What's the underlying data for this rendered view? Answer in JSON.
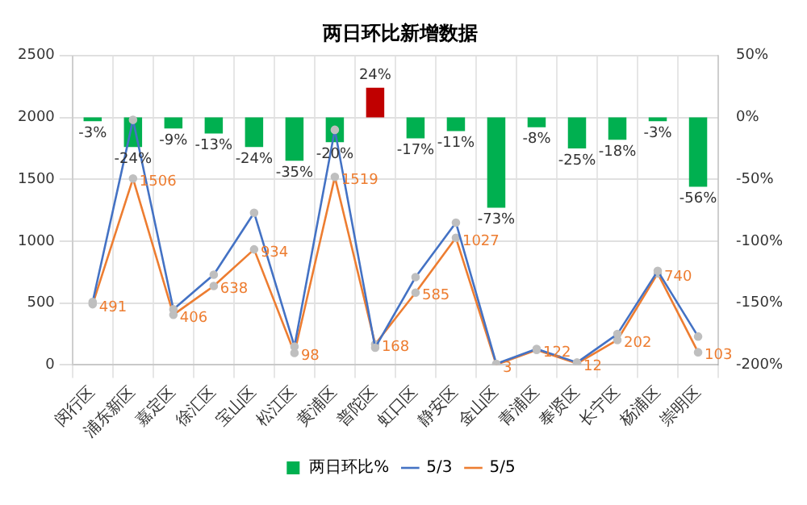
{
  "chart_data": {
    "type": "bar",
    "title": "两日环比新增数据",
    "categories": [
      "闵行区",
      "浦东新区",
      "嘉定区",
      "徐汇区",
      "宝山区",
      "松江区",
      "黄浦区",
      "普陀区",
      "虹口区",
      "静安区",
      "金山区",
      "青浦区",
      "奉贤区",
      "长宁区",
      "杨浦区",
      "崇明区"
    ],
    "series": [
      {
        "name": "两日环比%",
        "axis": "y2",
        "color": "#00b050",
        "colors": [
          "#00b050",
          "#00b050",
          "#00b050",
          "#00b050",
          "#00b050",
          "#00b050",
          "#00b050",
          "#c00000",
          "#00b050",
          "#00b050",
          "#00b050",
          "#00b050",
          "#00b050",
          "#00b050",
          "#00b050",
          "#00b050"
        ],
        "values": [
          -3,
          -24,
          -9,
          -13,
          -24,
          -35,
          -20,
          24,
          -17,
          -11,
          -73,
          -8,
          -25,
          -18,
          -3,
          -56
        ],
        "value_labels": [
          "-3%",
          "-24%",
          "-9%",
          "-13%",
          "-24%",
          "-35%",
          "-20%",
          "24%",
          "-17%",
          "-11%",
          "-73%",
          "-8%",
          "-25%",
          "-18%",
          "-3%",
          "-56%"
        ]
      },
      {
        "name": "5/3",
        "type": "line",
        "color": "#4472c4",
        "values": [
          510,
          1980,
          450,
          730,
          1230,
          150,
          1900,
          140,
          710,
          1150,
          10,
          130,
          20,
          250,
          760,
          230
        ]
      },
      {
        "name": "5/5",
        "type": "line",
        "color": "#ed7d31",
        "values": [
          491,
          1506,
          406,
          638,
          934,
          98,
          1519,
          168,
          585,
          1027,
          3,
          122,
          12,
          202,
          740,
          103
        ],
        "value_labels": [
          "491",
          "1506",
          "406",
          "638",
          "934",
          "98",
          "1519",
          "168",
          "585",
          "1027",
          "3",
          "122",
          "12",
          "202",
          "740",
          "103"
        ]
      }
    ],
    "ylim": [
      0,
      2500
    ],
    "yticks": [
      0,
      500,
      1000,
      1500,
      2000,
      2500
    ],
    "y2lim": [
      -200,
      50
    ],
    "y2ticks": [
      {
        "value": -200,
        "label": "-200%"
      },
      {
        "value": -150,
        "label": "-150%"
      },
      {
        "value": -100,
        "label": "-100%"
      },
      {
        "value": -50,
        "label": "-50%"
      },
      {
        "value": 0,
        "label": "0%"
      },
      {
        "value": 50,
        "label": "50%"
      }
    ],
    "grid": true,
    "legend": "bottom",
    "marker": "circle",
    "line_style": "solid"
  }
}
